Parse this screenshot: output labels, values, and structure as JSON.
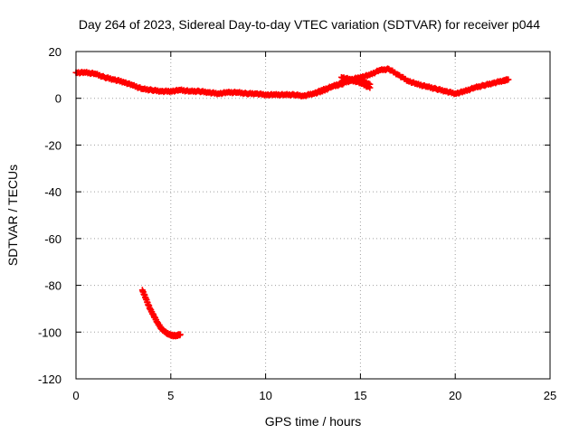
{
  "chart_data": {
    "type": "scatter",
    "title": "Day 264 of 2023, Sidereal Day-to-day VTEC variation (SDTVAR) for receiver p044",
    "xlabel": "GPS time / hours",
    "ylabel": "SDTVAR / TECUs",
    "xlim": [
      0,
      25
    ],
    "ylim": [
      -120,
      20
    ],
    "xticks": [
      0,
      5,
      10,
      15,
      20,
      25
    ],
    "yticks": [
      20,
      0,
      -20,
      -40,
      -60,
      -80,
      -100,
      -120
    ],
    "grid": true,
    "legend": "none",
    "marker_color": "#ff0000",
    "marker": "plus",
    "series": [
      {
        "name": "main-track",
        "x": [
          0.0,
          0.5,
          1.0,
          1.5,
          2.0,
          2.5,
          3.0,
          3.5,
          4.0,
          4.5,
          5.0,
          5.5,
          6.0,
          6.5,
          7.0,
          7.5,
          8.0,
          8.5,
          9.0,
          9.5,
          10.0,
          10.5,
          11.0,
          11.5,
          12.0,
          12.5,
          13.0,
          13.5,
          14.0,
          14.5,
          15.0,
          15.5,
          16.0,
          16.5,
          17.0,
          17.5,
          18.0,
          18.5,
          19.0,
          19.5,
          20.0,
          20.5,
          21.0,
          21.5,
          22.0,
          22.5,
          22.8
        ],
        "y": [
          11,
          11,
          10.5,
          9,
          8,
          7,
          5.5,
          4,
          3.5,
          3,
          3,
          3.5,
          3,
          3,
          2.5,
          2,
          2.5,
          2.5,
          2,
          2,
          1.5,
          1.5,
          1.5,
          1.5,
          1,
          2,
          3,
          5,
          6,
          8,
          9,
          10,
          12,
          12.5,
          10,
          7.5,
          6,
          5,
          4,
          3,
          2,
          3,
          4.5,
          5.5,
          6.5,
          7.5,
          8
        ]
      },
      {
        "name": "upper-branch",
        "x": [
          12.5,
          13.0,
          13.5,
          14.0,
          14.5,
          15.0,
          15.5
        ],
        "y": [
          2,
          3.5,
          5,
          6.5,
          7.5,
          7.5,
          6
        ]
      },
      {
        "name": "lower-branch",
        "x": [
          14.0,
          14.5,
          15.0,
          15.5
        ],
        "y": [
          9,
          8,
          6.5,
          4.5
        ]
      },
      {
        "name": "outlier-arc",
        "x": [
          3.5,
          3.7,
          3.9,
          4.1,
          4.3,
          4.5,
          4.7,
          4.9,
          5.1,
          5.3,
          5.5
        ],
        "y": [
          -82,
          -86,
          -90,
          -93,
          -96,
          -98.5,
          -100,
          -101,
          -101.5,
          -101.5,
          -101
        ]
      }
    ]
  }
}
